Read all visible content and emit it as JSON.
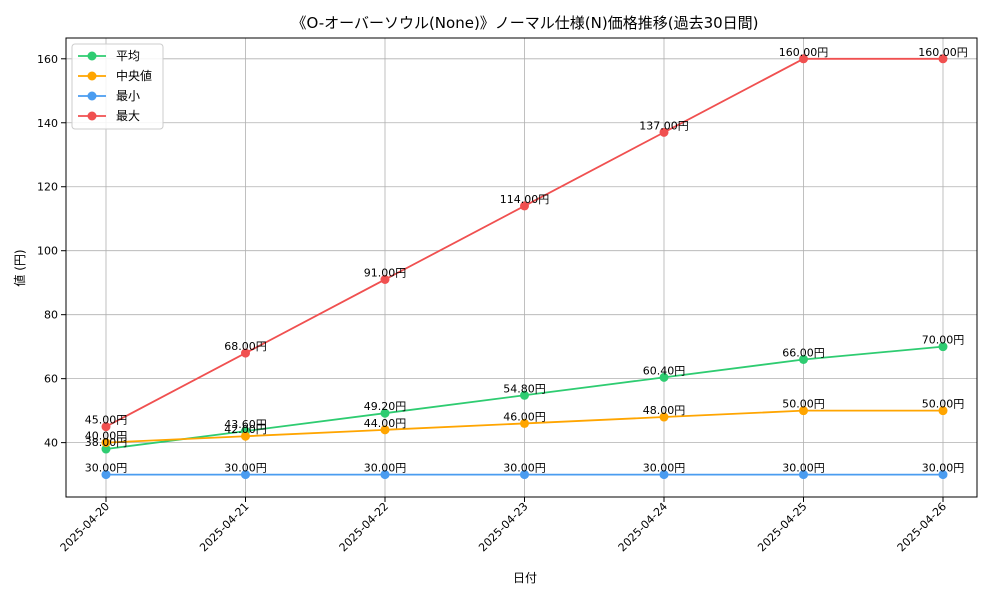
{
  "chart_data": {
    "type": "line",
    "title": "《O-オーバーソウル(None)》ノーマル仕様(N)価格推移(過去30日間)",
    "xlabel": "日付",
    "ylabel": "値 (円)",
    "categories": [
      "2025-04-20",
      "2025-04-21",
      "2025-04-22",
      "2025-04-23",
      "2025-04-24",
      "2025-04-25",
      "2025-04-26"
    ],
    "ylim": [
      23.0,
      166.5
    ],
    "yticks": [
      40,
      60,
      80,
      100,
      120,
      140,
      160
    ],
    "grid": true,
    "legend_position": "top-left",
    "value_suffix": "円",
    "series": [
      {
        "name": "平均",
        "color": "#2ecc71",
        "values": [
          38.0,
          43.6,
          49.2,
          54.8,
          60.4,
          66.0,
          70.0
        ],
        "labels": [
          "38.00円",
          "43.60円",
          "49.20円",
          "54.80円",
          "60.40円",
          "66.00円",
          "70.00円"
        ]
      },
      {
        "name": "中央値",
        "color": "#ffa500",
        "values": [
          40.0,
          42.0,
          44.0,
          46.0,
          48.0,
          50.0,
          50.0
        ],
        "labels": [
          "40.00円",
          "42.00円",
          "44.00円",
          "46.00円",
          "48.00円",
          "50.00円",
          "50.00円"
        ]
      },
      {
        "name": "最小",
        "color": "#4a9cf0",
        "values": [
          30.0,
          30.0,
          30.0,
          30.0,
          30.0,
          30.0,
          30.0
        ],
        "labels": [
          "30.00円",
          "30.00円",
          "30.00円",
          "30.00円",
          "30.00円",
          "30.00円",
          "30.00円"
        ]
      },
      {
        "name": "最大",
        "color": "#f05050",
        "values": [
          45.0,
          68.0,
          91.0,
          114.0,
          137.0,
          160.0,
          160.0
        ],
        "labels": [
          "45.00円",
          "68.00円",
          "91.00円",
          "114.00円",
          "137.00円",
          "160.00円",
          "160.00円"
        ]
      }
    ]
  }
}
